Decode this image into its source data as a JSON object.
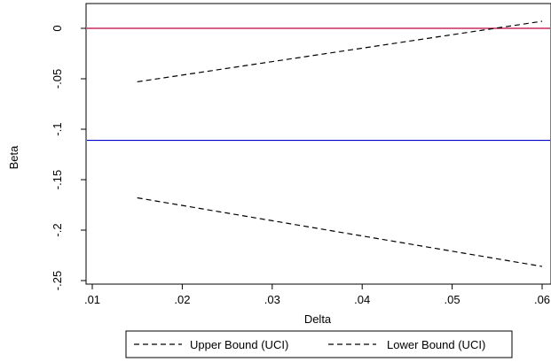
{
  "chart_data": {
    "type": "line",
    "xlabel": "Delta",
    "ylabel": "Beta",
    "xlim": [
      0.01,
      0.06
    ],
    "ylim": [
      -0.25,
      0.0
    ],
    "x_ticks": [
      {
        "value": 0.01,
        "label": ".01"
      },
      {
        "value": 0.02,
        "label": ".02"
      },
      {
        "value": 0.03,
        "label": ".03"
      },
      {
        "value": 0.04,
        "label": ".04"
      },
      {
        "value": 0.05,
        "label": ".05"
      },
      {
        "value": 0.06,
        "label": ".06"
      }
    ],
    "y_ticks": [
      {
        "value": 0.0,
        "label": "0"
      },
      {
        "value": -0.05,
        "label": "-.05"
      },
      {
        "value": -0.1,
        "label": "-.1"
      },
      {
        "value": -0.15,
        "label": "-.15"
      },
      {
        "value": -0.2,
        "label": "-.2"
      },
      {
        "value": -0.25,
        "label": "-.25"
      }
    ],
    "series": [
      {
        "name": "Upper Bound (UCI)",
        "x": [
          0.015,
          0.06
        ],
        "y": [
          -0.053,
          0.007
        ],
        "color": "#000000",
        "dash": "dashed"
      },
      {
        "name": "Lower Bound (UCI)",
        "x": [
          0.015,
          0.06
        ],
        "y": [
          -0.168,
          -0.236
        ],
        "color": "#000000",
        "dash": "dashed"
      }
    ],
    "reference_lines": [
      {
        "axis": "y",
        "value": 0.0,
        "color": "#c0003c"
      },
      {
        "axis": "y",
        "value": -0.111,
        "color": "#0000cc"
      }
    ],
    "grid": false,
    "legend_position": "bottom"
  }
}
